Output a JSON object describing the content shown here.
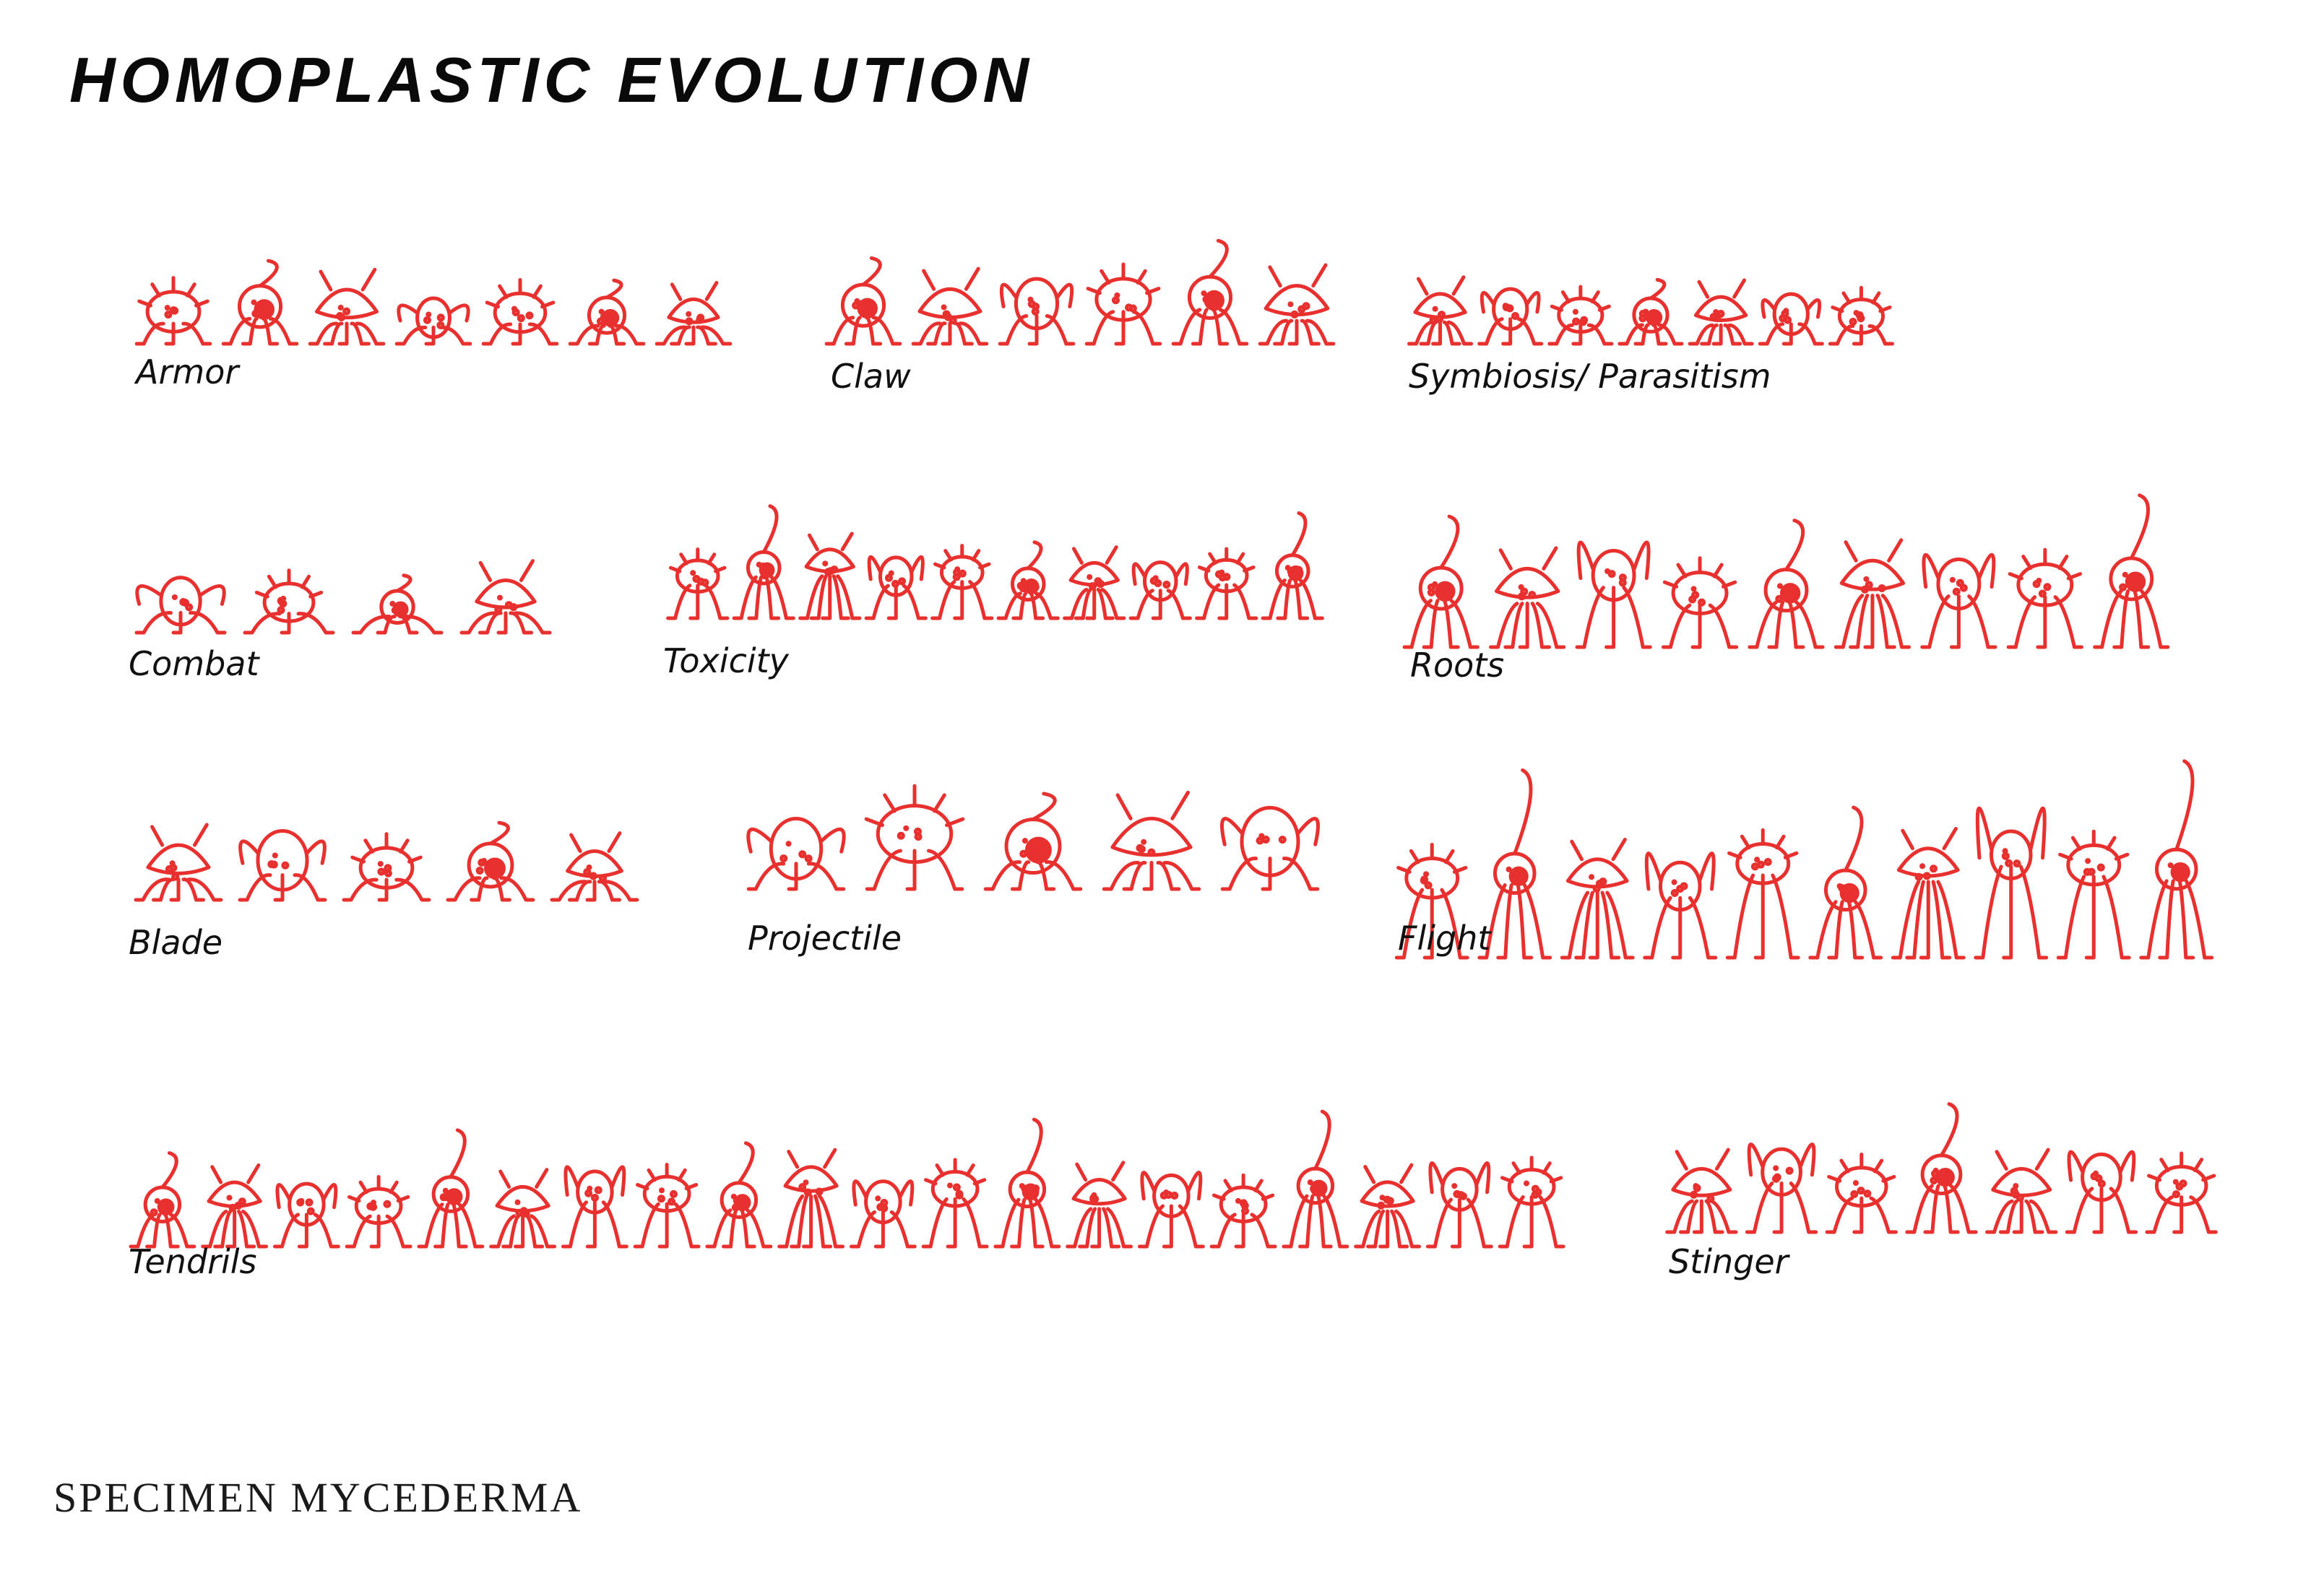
{
  "title": "HOMOPLASTIC EVOLUTION",
  "footer": "SPECIMEN MYCEDERMA",
  "theme": {
    "creature_color": "#e8302e",
    "text_color": "#111111"
  },
  "groups": [
    {
      "key": "armor",
      "label": "Armor",
      "count": 7
    },
    {
      "key": "claw",
      "label": "Claw",
      "count": 6
    },
    {
      "key": "symbiosis",
      "label": "Symbiosis/ Parasitism",
      "count": 7
    },
    {
      "key": "combat",
      "label": "Combat",
      "count": 4
    },
    {
      "key": "toxicity",
      "label": "Toxicity",
      "count": 10
    },
    {
      "key": "roots",
      "label": "Roots",
      "count": 9
    },
    {
      "key": "blade",
      "label": "Blade",
      "count": 5
    },
    {
      "key": "projectile",
      "label": "Projectile",
      "count": 5
    },
    {
      "key": "flight",
      "label": "Flight",
      "count": 10
    },
    {
      "key": "tendrils",
      "label": "Tendrils",
      "count": 20
    },
    {
      "key": "stinger",
      "label": "Stinger",
      "count": 7
    }
  ]
}
